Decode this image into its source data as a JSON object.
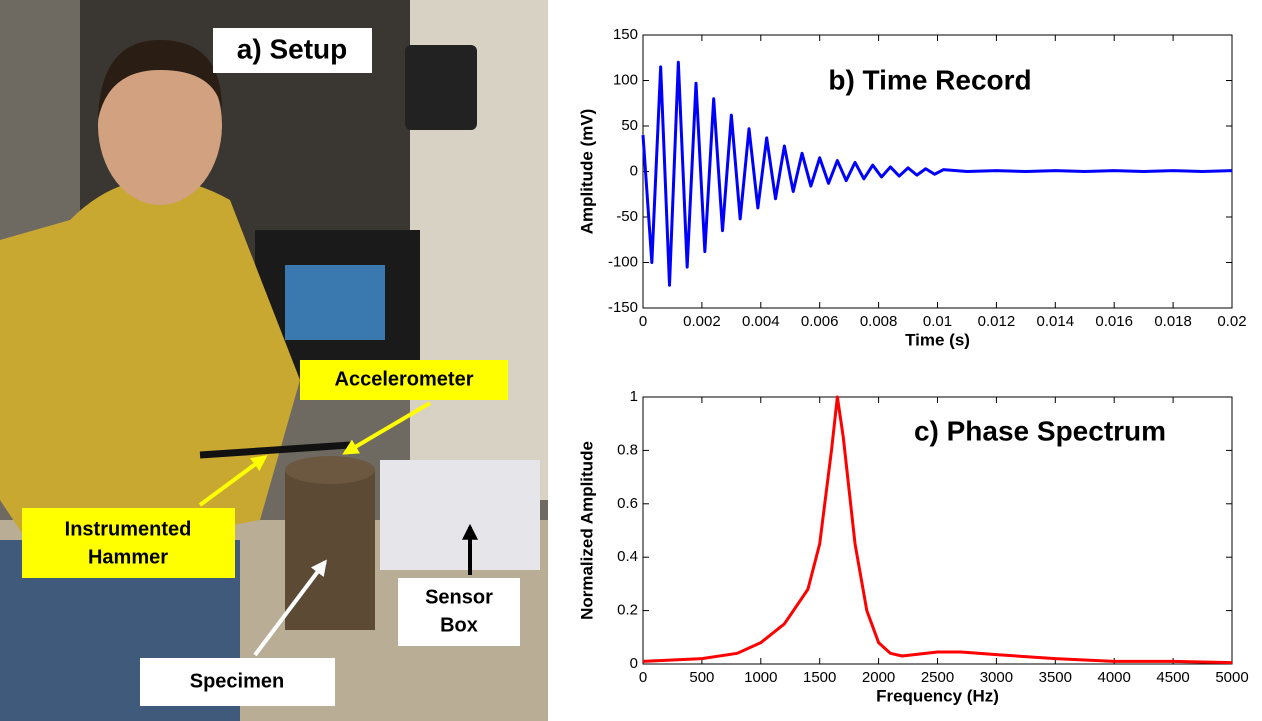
{
  "photo": {
    "title": "a) Setup",
    "labels": {
      "accelerometer": "Accelerometer",
      "hammer": [
        "Instrumented",
        "Hammer"
      ],
      "specimen": "Specimen",
      "sensor_box": [
        "Sensor",
        "Box"
      ]
    }
  },
  "chart_data": [
    {
      "type": "line",
      "title": "b) Time Record",
      "xlabel": "Time (s)",
      "ylabel": "Amplitude (mV)",
      "color": "#0000ff",
      "grid": false,
      "x": [
        0,
        0.0003,
        0.0006,
        0.0009,
        0.0012,
        0.0015,
        0.0018,
        0.0021,
        0.0024,
        0.0027,
        0.003,
        0.0033,
        0.0036,
        0.0039,
        0.0042,
        0.0045,
        0.0048,
        0.0051,
        0.0054,
        0.0057,
        0.006,
        0.0063,
        0.0066,
        0.0069,
        0.0072,
        0.0075,
        0.0078,
        0.0081,
        0.0084,
        0.0087,
        0.009,
        0.0093,
        0.0096,
        0.0099,
        0.0102,
        0.011,
        0.012,
        0.013,
        0.014,
        0.015,
        0.016,
        0.017,
        0.018,
        0.019,
        0.02
      ],
      "values": [
        40,
        -100,
        115,
        -125,
        120,
        -105,
        97,
        -88,
        80,
        -65,
        62,
        -52,
        47,
        -40,
        37,
        -30,
        28,
        -22,
        20,
        -16,
        15,
        -13,
        12,
        -10,
        10,
        -8,
        7,
        -6,
        5,
        -5,
        4,
        -4,
        3,
        -3,
        2,
        0,
        1,
        0,
        1,
        0,
        1,
        0,
        1,
        0,
        1
      ],
      "xlim": [
        0,
        0.02
      ],
      "xticks": [
        0,
        0.002,
        0.004,
        0.006,
        0.008,
        0.01,
        0.012,
        0.014,
        0.016,
        0.018,
        0.02
      ],
      "ylim": [
        -150,
        150
      ],
      "yticks": [
        -150,
        -100,
        -50,
        0,
        50,
        100,
        150
      ]
    },
    {
      "type": "line",
      "title": "c) Phase Spectrum",
      "xlabel": "Frequency (Hz)",
      "ylabel": "Normalized Amplitude",
      "color": "#ff0000",
      "grid": false,
      "x": [
        0,
        500,
        800,
        1000,
        1200,
        1400,
        1500,
        1600,
        1650,
        1700,
        1800,
        1900,
        2000,
        2100,
        2200,
        2500,
        2700,
        3000,
        3500,
        4000,
        4500,
        5000
      ],
      "values": [
        0.01,
        0.02,
        0.04,
        0.08,
        0.15,
        0.28,
        0.45,
        0.8,
        1,
        0.85,
        0.45,
        0.2,
        0.08,
        0.04,
        0.03,
        0.045,
        0.045,
        0.035,
        0.02,
        0.01,
        0.01,
        0.005
      ],
      "xlim": [
        0,
        5000
      ],
      "xticks": [
        0,
        500,
        1000,
        1500,
        2000,
        2500,
        3000,
        3500,
        4000,
        4500,
        5000
      ],
      "ylim": [
        0,
        1
      ],
      "yticks": [
        0,
        0.2,
        0.4,
        0.6,
        0.8,
        1
      ]
    }
  ]
}
